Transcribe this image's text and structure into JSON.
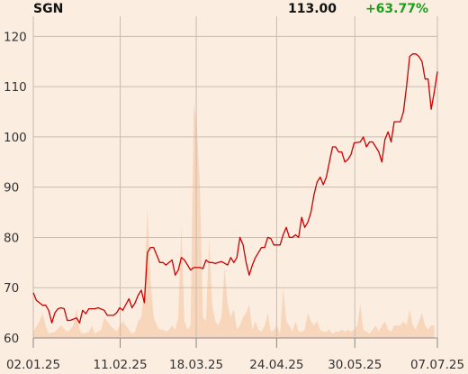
{
  "header": {
    "ticker": "SGN",
    "price": "113.00",
    "change": "+63.77%"
  },
  "colors": {
    "background": "#fcede1",
    "line": "#cc0000",
    "volume": "#f8d6bb",
    "grid": "#c9bcb1",
    "axis": "#888888",
    "change": "#19a019"
  },
  "chart_data": {
    "type": "line",
    "ylim": [
      60,
      124
    ],
    "y_ticks": [
      60,
      70,
      80,
      90,
      100,
      110,
      120
    ],
    "x_tick_labels": [
      "02.01.25",
      "11.02.25",
      "18.03.25",
      "24.04.25",
      "30.05.25",
      "07.07.25"
    ],
    "x_domain_days": [
      0,
      186
    ],
    "x_tick_days": [
      0,
      40,
      75,
      112,
      148,
      186
    ],
    "series": [
      {
        "values": [
          [
            0,
            69
          ],
          [
            1,
            67.5
          ],
          [
            3,
            66.5
          ],
          [
            4,
            66.5
          ],
          [
            5,
            65.5
          ],
          [
            6,
            63
          ],
          [
            7,
            65
          ],
          [
            8,
            65.8
          ],
          [
            9,
            66
          ],
          [
            10,
            65.8
          ],
          [
            11,
            63.5
          ],
          [
            12,
            63.5
          ],
          [
            14,
            64
          ],
          [
            15,
            63
          ],
          [
            16,
            65.5
          ],
          [
            17,
            64.8
          ],
          [
            18,
            65.8
          ],
          [
            20,
            65.8
          ],
          [
            21,
            66
          ],
          [
            23,
            65.5
          ],
          [
            24,
            64.5
          ],
          [
            26,
            64.5
          ],
          [
            27,
            65
          ],
          [
            28,
            66
          ],
          [
            29,
            65.5
          ],
          [
            31,
            67.8
          ],
          [
            32,
            66
          ],
          [
            33,
            67
          ],
          [
            34,
            68.5
          ],
          [
            35,
            69.5
          ],
          [
            36,
            67
          ],
          [
            37,
            77
          ],
          [
            38,
            78
          ],
          [
            39,
            78
          ],
          [
            41,
            75
          ],
          [
            42,
            75
          ],
          [
            43,
            74.5
          ],
          [
            44,
            75
          ],
          [
            45,
            75.5
          ],
          [
            46,
            72.5
          ],
          [
            47,
            73.5
          ],
          [
            48,
            76
          ],
          [
            49,
            75.5
          ],
          [
            50,
            74.5
          ],
          [
            51,
            73.5
          ],
          [
            52,
            74
          ],
          [
            53,
            74
          ],
          [
            54,
            74
          ],
          [
            55,
            73.8
          ],
          [
            56,
            75.5
          ],
          [
            57,
            75
          ],
          [
            58,
            75
          ],
          [
            59,
            74.8
          ],
          [
            60,
            75
          ],
          [
            61,
            75.2
          ],
          [
            63,
            74.5
          ],
          [
            64,
            76
          ],
          [
            65,
            75
          ],
          [
            66,
            76
          ],
          [
            67,
            80
          ],
          [
            68,
            78.5
          ],
          [
            69,
            75
          ],
          [
            70,
            72.5
          ],
          [
            71,
            74.5
          ],
          [
            72,
            76
          ],
          [
            73,
            77
          ],
          [
            74,
            78
          ],
          [
            75,
            78
          ],
          [
            76,
            80
          ],
          [
            77,
            79.8
          ],
          [
            78,
            78.5
          ],
          [
            80,
            78.5
          ],
          [
            81,
            80.5
          ],
          [
            82,
            82
          ],
          [
            83,
            80
          ],
          [
            84,
            80
          ],
          [
            85,
            80.5
          ],
          [
            86,
            80
          ],
          [
            87,
            84
          ],
          [
            88,
            82
          ],
          [
            89,
            83
          ],
          [
            90,
            85
          ],
          [
            91,
            88.5
          ],
          [
            92,
            91
          ],
          [
            93,
            92
          ],
          [
            94,
            90.5
          ],
          [
            95,
            92
          ],
          [
            96,
            95
          ],
          [
            97,
            98
          ],
          [
            98,
            98
          ],
          [
            99,
            97
          ],
          [
            100,
            97
          ],
          [
            101,
            95
          ],
          [
            102,
            95.5
          ],
          [
            103,
            96.5
          ],
          [
            104,
            98.8
          ],
          [
            106,
            99
          ],
          [
            107,
            100
          ],
          [
            108,
            98
          ],
          [
            109,
            99
          ],
          [
            110,
            99
          ],
          [
            111,
            98
          ],
          [
            112,
            97
          ],
          [
            113,
            95
          ],
          [
            114,
            99.5
          ],
          [
            115,
            101
          ],
          [
            116,
            99
          ],
          [
            117,
            103
          ],
          [
            119,
            103
          ],
          [
            120,
            105
          ],
          [
            121,
            110
          ],
          [
            122,
            116
          ],
          [
            123,
            116.5
          ],
          [
            124,
            116.5
          ],
          [
            125,
            116
          ],
          [
            126,
            115
          ],
          [
            127,
            111.5
          ],
          [
            128,
            111.5
          ],
          [
            129,
            105.5
          ],
          [
            130,
            109
          ],
          [
            131,
            113
          ]
        ]
      }
    ],
    "volume": [
      [
        0,
        1.5
      ],
      [
        2,
        4
      ],
      [
        3,
        6
      ],
      [
        4,
        3
      ],
      [
        5,
        1
      ],
      [
        7,
        1.5
      ],
      [
        9,
        3
      ],
      [
        11,
        1.5
      ],
      [
        12,
        2
      ],
      [
        13,
        3
      ],
      [
        14,
        7
      ],
      [
        15,
        2
      ],
      [
        16,
        1
      ],
      [
        18,
        1.5
      ],
      [
        19,
        3
      ],
      [
        20,
        1
      ],
      [
        22,
        2
      ],
      [
        23,
        5
      ],
      [
        25,
        3
      ],
      [
        27,
        1.5
      ],
      [
        28,
        3
      ],
      [
        29,
        4
      ],
      [
        31,
        2
      ],
      [
        32,
        1
      ],
      [
        33,
        1.5
      ],
      [
        34,
        4
      ],
      [
        35,
        5
      ],
      [
        36,
        12
      ],
      [
        37,
        31
      ],
      [
        38,
        14
      ],
      [
        39,
        5
      ],
      [
        40,
        3
      ],
      [
        41,
        2
      ],
      [
        42,
        2
      ],
      [
        43,
        1.5
      ],
      [
        44,
        2
      ],
      [
        45,
        3
      ],
      [
        46,
        2
      ],
      [
        47,
        5
      ],
      [
        48,
        27
      ],
      [
        49,
        4
      ],
      [
        50,
        2
      ],
      [
        51,
        3
      ],
      [
        52,
        56
      ],
      [
        53,
        51
      ],
      [
        54,
        36
      ],
      [
        55,
        5
      ],
      [
        56,
        4
      ],
      [
        57,
        24
      ],
      [
        58,
        8
      ],
      [
        59,
        4
      ],
      [
        60,
        3
      ],
      [
        61,
        5
      ],
      [
        62,
        17
      ],
      [
        63,
        8
      ],
      [
        64,
        5
      ],
      [
        65,
        7
      ],
      [
        66,
        2
      ],
      [
        67,
        3
      ],
      [
        68,
        5
      ],
      [
        69,
        6
      ],
      [
        70,
        8
      ],
      [
        71,
        2
      ],
      [
        72,
        4
      ],
      [
        73,
        2
      ],
      [
        74,
        1.5
      ],
      [
        75,
        3
      ],
      [
        76,
        6
      ],
      [
        77,
        1.5
      ],
      [
        78,
        2
      ],
      [
        79,
        3
      ],
      [
        80,
        1
      ],
      [
        81,
        12
      ],
      [
        82,
        4
      ],
      [
        83,
        3
      ],
      [
        84,
        1.5
      ],
      [
        85,
        4
      ],
      [
        86,
        1.5
      ],
      [
        87,
        1.5
      ],
      [
        88,
        2
      ],
      [
        89,
        6
      ],
      [
        90,
        4
      ],
      [
        91,
        3
      ],
      [
        92,
        4
      ],
      [
        93,
        2
      ],
      [
        94,
        1.5
      ],
      [
        95,
        1.5
      ],
      [
        96,
        2
      ],
      [
        97,
        1
      ],
      [
        98,
        1.5
      ],
      [
        99,
        1.5
      ],
      [
        100,
        2
      ],
      [
        101,
        1.5
      ],
      [
        102,
        2
      ],
      [
        103,
        1.5
      ],
      [
        104,
        2
      ],
      [
        105,
        3
      ],
      [
        106,
        8
      ],
      [
        107,
        2
      ],
      [
        108,
        1.5
      ],
      [
        109,
        1
      ],
      [
        110,
        2
      ],
      [
        111,
        3
      ],
      [
        112,
        1.5
      ],
      [
        113,
        3
      ],
      [
        114,
        4
      ],
      [
        115,
        2
      ],
      [
        116,
        1.5
      ],
      [
        117,
        3
      ],
      [
        118,
        3
      ],
      [
        119,
        3
      ],
      [
        120,
        4
      ],
      [
        121,
        3
      ],
      [
        122,
        7
      ],
      [
        123,
        3
      ],
      [
        124,
        2
      ],
      [
        125,
        4
      ],
      [
        126,
        6
      ],
      [
        127,
        3
      ],
      [
        128,
        2
      ],
      [
        129,
        3
      ],
      [
        130,
        3
      ]
    ],
    "grid": true
  }
}
